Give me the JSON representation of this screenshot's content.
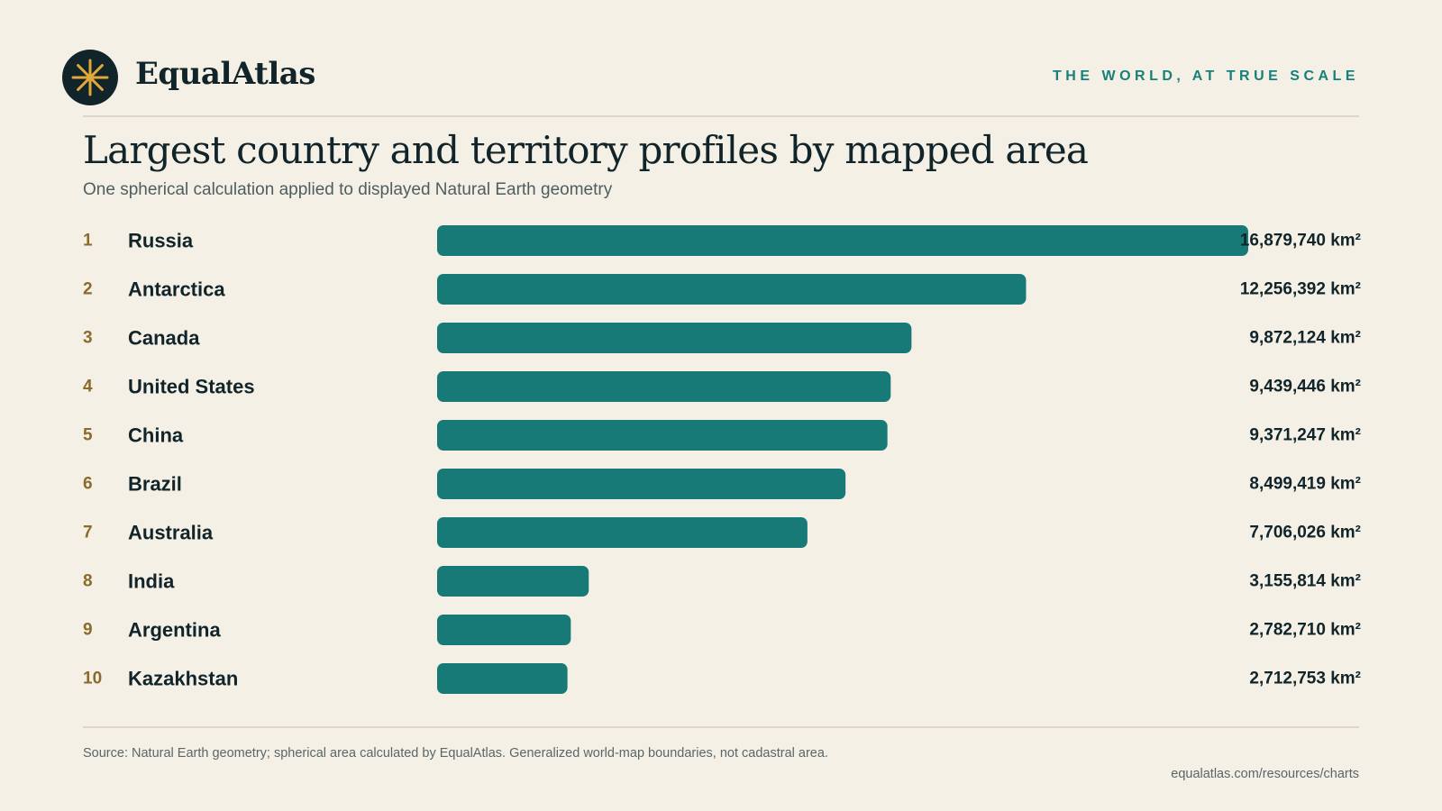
{
  "brand": {
    "name": "EqualAtlas",
    "tagline": "THE WORLD, AT TRUE SCALE",
    "logo_icon": "sun-star-icon",
    "colors": {
      "background": "#f4f0e6",
      "bar": "#177a76",
      "rank": "#8b6a2a",
      "accent": "#17807b",
      "logo_circle": "#10242a",
      "logo_star": "#e0a83a"
    }
  },
  "footer": {
    "source": "Source: Natural Earth geometry; spherical area calculated by EqualAtlas. Generalized world-map boundaries, not cadastral area.",
    "url": "equalatlas.com/resources/charts"
  },
  "chart_data": {
    "type": "bar",
    "orientation": "horizontal",
    "title": "Largest country and territory profiles by mapped area",
    "subtitle": "One spherical calculation applied to displayed Natural Earth geometry",
    "unit": "km²",
    "ranks": [
      "1",
      "2",
      "3",
      "4",
      "5",
      "6",
      "7",
      "8",
      "9",
      "10"
    ],
    "categories": [
      "Russia",
      "Antarctica",
      "Canada",
      "United States",
      "China",
      "Brazil",
      "Australia",
      "India",
      "Argentina",
      "Kazakhstan"
    ],
    "values": [
      16879740,
      12256392,
      9872124,
      9439446,
      9371247,
      8499419,
      7706026,
      3155814,
      2782710,
      2712753
    ],
    "value_labels": [
      "16,879,740 km²",
      "12,256,392 km²",
      "9,872,124 km²",
      "9,439,446 km²",
      "9,371,247 km²",
      "8,499,419 km²",
      "7,706,026 km²",
      "3,155,814 km²",
      "2,782,710 km²",
      "2,712,753 km²"
    ],
    "xlim": [
      0,
      16879740
    ],
    "grid": false,
    "legend": "none"
  }
}
